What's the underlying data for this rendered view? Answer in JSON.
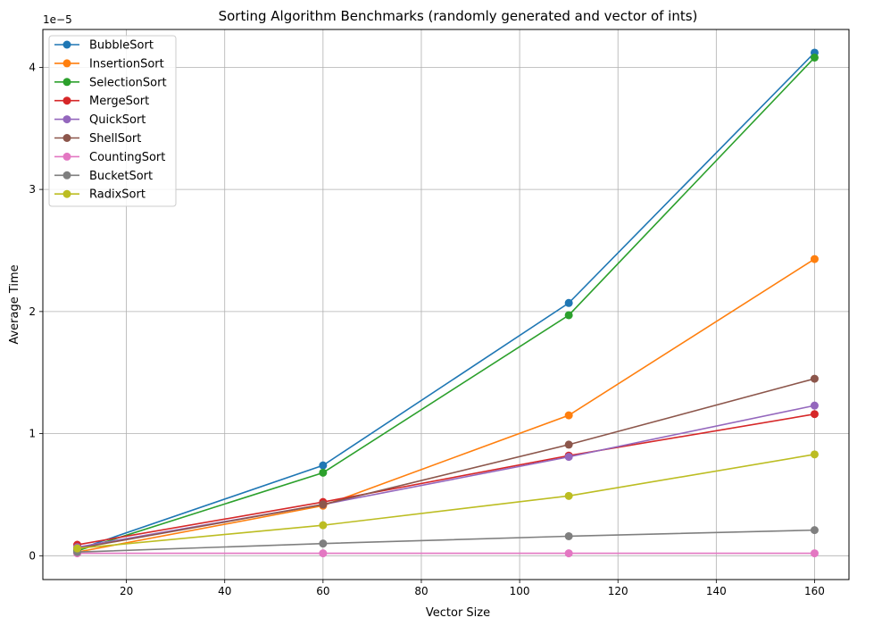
{
  "chart_data": {
    "type": "line",
    "title": "Sorting Algorithm Benchmarks (randomly generated and vector of ints)",
    "xlabel": "Vector Size",
    "ylabel": "Average Time",
    "y_offset_label": "1e−5",
    "x": [
      10,
      60,
      110,
      160
    ],
    "xlim": [
      3,
      167
    ],
    "ylim": [
      -0.195,
      4.31
    ],
    "xticks": [
      20,
      40,
      60,
      80,
      100,
      120,
      140,
      160
    ],
    "yticks": [
      0,
      1,
      2,
      3,
      4
    ],
    "grid": true,
    "legend_position": "top-left",
    "series": [
      {
        "name": "BubbleSort",
        "color": "#1f77b4",
        "values": [
          0.05,
          0.74,
          2.07,
          4.12
        ]
      },
      {
        "name": "InsertionSort",
        "color": "#ff7f0e",
        "values": [
          0.03,
          0.41,
          1.15,
          2.43
        ]
      },
      {
        "name": "SelectionSort",
        "color": "#2ca02c",
        "values": [
          0.04,
          0.68,
          1.97,
          4.08
        ]
      },
      {
        "name": "MergeSort",
        "color": "#d62728",
        "values": [
          0.09,
          0.44,
          0.82,
          1.16
        ]
      },
      {
        "name": "QuickSort",
        "color": "#9467bd",
        "values": [
          0.07,
          0.42,
          0.81,
          1.23
        ]
      },
      {
        "name": "ShellSort",
        "color": "#8c564b",
        "values": [
          0.06,
          0.42,
          0.91,
          1.45
        ]
      },
      {
        "name": "CountingSort",
        "color": "#e377c2",
        "values": [
          0.02,
          0.02,
          0.02,
          0.02
        ]
      },
      {
        "name": "BucketSort",
        "color": "#7f7f7f",
        "values": [
          0.03,
          0.1,
          0.16,
          0.21
        ]
      },
      {
        "name": "RadixSort",
        "color": "#bcbd22",
        "values": [
          0.06,
          0.25,
          0.49,
          0.83
        ]
      }
    ]
  }
}
